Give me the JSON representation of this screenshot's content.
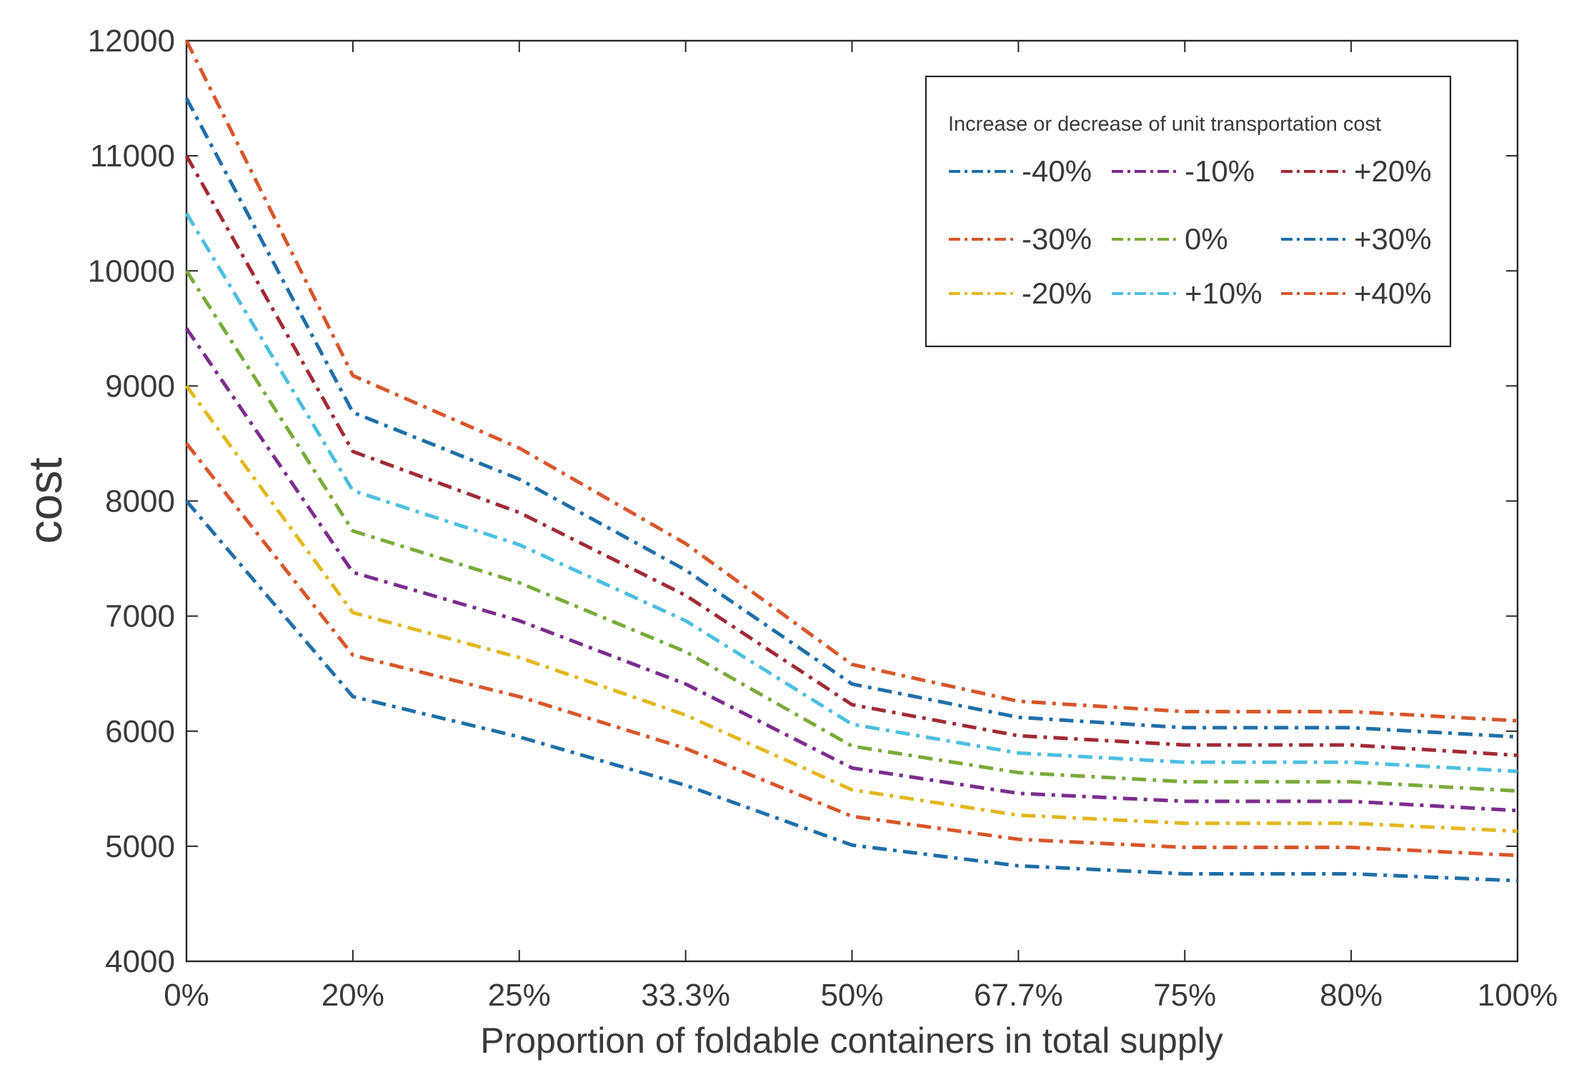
{
  "chart_data": {
    "type": "line",
    "title": "",
    "xlabel": "Proportion of foldable containers in total supply",
    "ylabel": "cost",
    "categories": [
      "0%",
      "20%",
      "25%",
      "33.3%",
      "50%",
      "67.7%",
      "75%",
      "80%",
      "100%"
    ],
    "ylim": [
      4000,
      12000
    ],
    "yticks": [
      4000,
      5000,
      6000,
      7000,
      8000,
      9000,
      10000,
      11000,
      12000
    ],
    "grid": false,
    "legend": {
      "title": "Increase or decrease of unit transportation cost",
      "placement": "top-right",
      "columns": 3
    },
    "line_style": "dash-dot",
    "series": [
      {
        "name": "-40%",
        "color": "#1f6fa8",
        "values": [
          8000,
          6300,
          5950,
          5530,
          5010,
          4830,
          4760,
          4760,
          4700
        ]
      },
      {
        "name": "-30%",
        "color": "#d8562a",
        "values": [
          8500,
          6660,
          6300,
          5850,
          5260,
          5060,
          4990,
          4990,
          4920
        ]
      },
      {
        "name": "-20%",
        "color": "#e3b81e",
        "values": [
          9000,
          7030,
          6640,
          6140,
          5490,
          5270,
          5200,
          5200,
          5130
        ]
      },
      {
        "name": "-10%",
        "color": "#7b2d8e",
        "values": [
          9500,
          7380,
          6960,
          6410,
          5680,
          5460,
          5390,
          5390,
          5310
        ]
      },
      {
        "name": "0%",
        "color": "#7aab3a",
        "values": [
          10000,
          7740,
          7290,
          6690,
          5870,
          5640,
          5560,
          5560,
          5480
        ]
      },
      {
        "name": "+10%",
        "color": "#4cbfe0",
        "values": [
          10500,
          8090,
          7620,
          6960,
          6060,
          5810,
          5730,
          5730,
          5650
        ]
      },
      {
        "name": "+20%",
        "color": "#a12a35",
        "values": [
          11000,
          8430,
          7900,
          7180,
          6230,
          5960,
          5880,
          5880,
          5790
        ]
      },
      {
        "name": "+30%",
        "color": "#1f6fa8",
        "values": [
          11500,
          8770,
          8190,
          7400,
          6410,
          6120,
          6030,
          6030,
          5950
        ]
      },
      {
        "name": "+40%",
        "color": "#d8562a",
        "values": [
          12000,
          9090,
          8460,
          7630,
          6580,
          6260,
          6170,
          6170,
          6090
        ]
      }
    ],
    "legend_order": [
      "-40%",
      "-10%",
      "+20%",
      "-30%",
      "0%",
      "+30%",
      "-20%",
      "+10%",
      "+40%"
    ]
  }
}
